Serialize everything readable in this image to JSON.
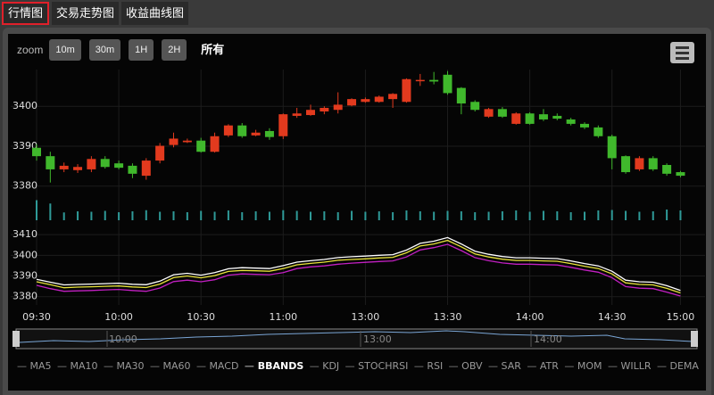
{
  "tabs": [
    "行情图",
    "交易走势图",
    "收益曲线图"
  ],
  "zoom": {
    "label": "zoom",
    "buttons": [
      "10m",
      "30m",
      "1H",
      "2H",
      "所有"
    ]
  },
  "chart_data": [
    {
      "type": "candlestick",
      "up_color": "#e23a1e",
      "down_color": "#40b82c",
      "ylim": [
        3378.6,
        3409.2
      ],
      "yticks": [
        3380,
        3390,
        3400
      ],
      "open": [
        3389.6,
        3387.5,
        3384.2,
        3384.0,
        3384.2,
        3386.8,
        3385.7,
        3385.1,
        3382.6,
        3386.4,
        3390.3,
        3391.0,
        3391.4,
        3388.6,
        3392.7,
        3395.2,
        3392.7,
        3393.8,
        3392.5,
        3397.6,
        3397.8,
        3398.7,
        3399.1,
        3400.2,
        3401.1,
        3401.1,
        3401.8,
        3401.1,
        3406.4,
        3406.6,
        3407.9,
        3404.6,
        3401.1,
        3397.4,
        3399.3,
        3395.6,
        3398.2,
        3398.0,
        3397.6,
        3396.7,
        3395.6,
        3394.7,
        3392.5,
        3387.5,
        3384.2,
        3387.0,
        3385.3,
        3383.5
      ],
      "high": [
        3390.5,
        3388.6,
        3385.9,
        3385.5,
        3387.5,
        3387.5,
        3386.4,
        3385.7,
        3387.0,
        3390.8,
        3393.4,
        3391.9,
        3392.1,
        3393.4,
        3395.5,
        3395.8,
        3394.1,
        3394.5,
        3398.2,
        3399.6,
        3400.4,
        3400.0,
        3403.5,
        3402.0,
        3402.2,
        3402.7,
        3403.3,
        3407.0,
        3408.1,
        3408.6,
        3408.8,
        3404.8,
        3401.5,
        3399.6,
        3399.8,
        3398.5,
        3398.5,
        3399.3,
        3398.2,
        3397.1,
        3396.0,
        3395.2,
        3392.9,
        3387.7,
        3387.5,
        3387.5,
        3385.7,
        3383.8
      ],
      "low": [
        3386.4,
        3380.9,
        3383.5,
        3383.3,
        3383.5,
        3384.4,
        3384.2,
        3382.0,
        3381.6,
        3385.7,
        3389.7,
        3390.8,
        3388.4,
        3388.4,
        3392.3,
        3392.1,
        3392.5,
        3391.6,
        3391.8,
        3397.1,
        3397.6,
        3398.0,
        3398.2,
        3400.0,
        3400.9,
        3400.9,
        3399.6,
        3400.9,
        3405.1,
        3405.5,
        3402.9,
        3398.0,
        3398.7,
        3397.1,
        3397.1,
        3395.4,
        3395.4,
        3396.3,
        3396.5,
        3395.2,
        3394.3,
        3392.1,
        3384.2,
        3383.1,
        3383.8,
        3383.8,
        3382.6,
        3382.2
      ],
      "close": [
        3387.5,
        3384.2,
        3385.1,
        3384.8,
        3386.8,
        3384.8,
        3384.6,
        3383.1,
        3386.4,
        3390.1,
        3391.9,
        3391.4,
        3388.6,
        3392.5,
        3395.2,
        3392.5,
        3393.4,
        3392.3,
        3398.0,
        3398.2,
        3399.1,
        3399.6,
        3400.4,
        3401.8,
        3401.8,
        3402.4,
        3403.1,
        3406.8,
        3406.6,
        3406.2,
        3403.3,
        3400.7,
        3399.1,
        3399.3,
        3397.4,
        3398.2,
        3395.6,
        3396.7,
        3396.9,
        3395.6,
        3394.7,
        3392.5,
        3387.0,
        3383.5,
        3387.0,
        3384.2,
        3383.1,
        3382.6
      ]
    },
    {
      "type": "bar",
      "color": "#2f9a98",
      "ylim": [
        0,
        100
      ],
      "values": [
        90,
        75,
        35,
        40,
        38,
        42,
        36,
        40,
        45,
        38,
        40,
        36,
        42,
        38,
        44,
        36,
        40,
        38,
        45,
        42,
        38,
        40,
        36,
        42,
        38,
        40,
        36,
        44,
        40,
        38,
        42,
        40,
        36,
        38,
        40,
        44,
        38,
        42,
        40,
        36,
        38,
        44,
        46,
        42,
        38,
        40,
        48,
        44
      ]
    },
    {
      "type": "line",
      "ylim": [
        3376,
        3413.5
      ],
      "yticks": [
        3380,
        3390,
        3400,
        3410
      ],
      "xticks": [
        {
          "value": 0,
          "label": "09:30"
        },
        {
          "value": 6,
          "label": "10:00"
        },
        {
          "value": 12,
          "label": "10:30"
        },
        {
          "value": 18,
          "label": "11:00"
        },
        {
          "value": 24,
          "label": "13:00"
        },
        {
          "value": 30,
          "label": "13:30"
        },
        {
          "value": 36,
          "label": "14:00"
        },
        {
          "value": 42,
          "label": "14:30"
        },
        {
          "value": 47,
          "label": "15:00"
        }
      ],
      "series": [
        {
          "color": "#ffffff",
          "values": [
            3388.4,
            3387.0,
            3385.7,
            3385.9,
            3386.1,
            3386.3,
            3386.5,
            3386.0,
            3385.8,
            3387.5,
            3390.6,
            3391.3,
            3390.4,
            3391.6,
            3393.5,
            3394.0,
            3393.8,
            3393.6,
            3395.0,
            3396.7,
            3397.4,
            3398.0,
            3398.9,
            3399.3,
            3399.6,
            3400.0,
            3400.3,
            3402.5,
            3405.8,
            3406.8,
            3408.6,
            3405.5,
            3402.0,
            3400.5,
            3399.4,
            3398.8,
            3398.8,
            3398.6,
            3398.4,
            3397.3,
            3396.0,
            3394.9,
            3392.3,
            3388.0,
            3387.2,
            3387.0,
            3385.3,
            3383.0
          ]
        },
        {
          "color": "#e8e23a",
          "values": [
            3387.2,
            3385.8,
            3384.3,
            3384.6,
            3384.8,
            3385.0,
            3385.2,
            3384.7,
            3384.4,
            3386.1,
            3389.2,
            3390.0,
            3389.1,
            3390.2,
            3392.2,
            3392.7,
            3392.5,
            3392.3,
            3393.6,
            3395.4,
            3396.1,
            3396.7,
            3397.6,
            3398.0,
            3398.3,
            3398.7,
            3399.0,
            3401.2,
            3404.5,
            3405.5,
            3407.2,
            3404.1,
            3400.7,
            3399.2,
            3398.1,
            3397.5,
            3397.5,
            3397.3,
            3397.1,
            3396.0,
            3394.7,
            3393.6,
            3391.0,
            3386.7,
            3385.9,
            3385.7,
            3384.0,
            3381.8
          ]
        },
        {
          "color": "#c21fc2",
          "values": [
            3385.5,
            3383.9,
            3382.6,
            3382.8,
            3383.0,
            3383.3,
            3383.5,
            3383.0,
            3382.6,
            3384.2,
            3387.3,
            3388.0,
            3387.2,
            3388.2,
            3390.4,
            3391.0,
            3390.8,
            3390.6,
            3391.6,
            3393.6,
            3394.4,
            3394.9,
            3395.7,
            3396.2,
            3396.6,
            3397.0,
            3397.3,
            3399.2,
            3402.6,
            3403.7,
            3405.3,
            3402.3,
            3398.9,
            3397.4,
            3396.3,
            3395.7,
            3395.7,
            3395.5,
            3395.3,
            3394.2,
            3392.9,
            3391.8,
            3389.2,
            3384.9,
            3384.1,
            3383.9,
            3382.2,
            3380.3
          ]
        }
      ]
    }
  ],
  "navigator": {
    "labels": [
      "10:00",
      "13:00",
      "14:00"
    ]
  },
  "legend": {
    "items": [
      "MA5",
      "MA10",
      "MA30",
      "MA60",
      "MACD",
      "BBANDS",
      "KDJ",
      "STOCHRSI",
      "RSI",
      "OBV",
      "SAR",
      "ATR",
      "MOM",
      "WILLR",
      "DEMA"
    ],
    "active": 5
  }
}
